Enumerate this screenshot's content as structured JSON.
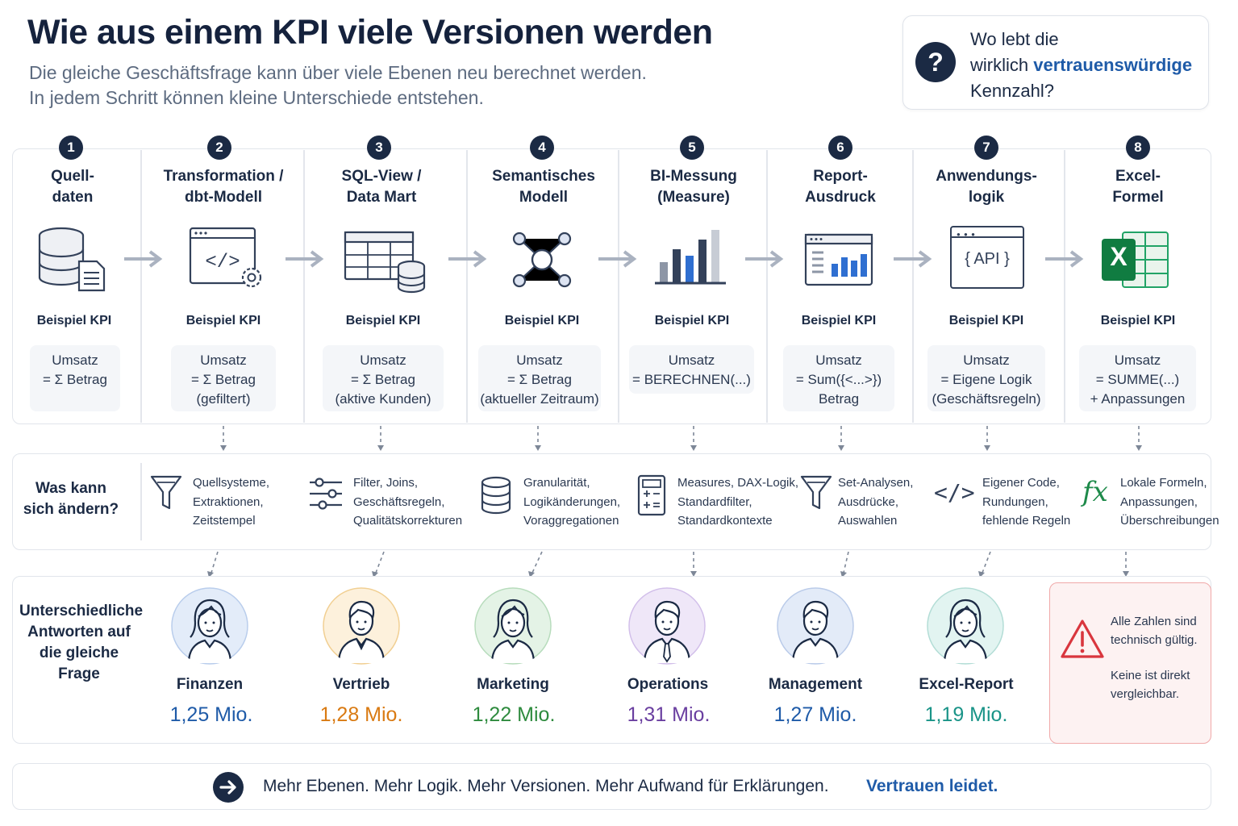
{
  "header": {
    "title": "Wie aus einem KPI viele Versionen werden",
    "subtitle_lines": [
      "Die gleiche Geschäftsfrage kann über viele Ebenen neu berechnet werden.",
      "In jedem Schritt können kleine Unterschiede entstehen."
    ]
  },
  "question_box": {
    "icon": "question-mark-icon",
    "symbol": "?",
    "line1": "Wo lebt die",
    "line2_prefix": "wirklich ",
    "line2_highlight": "vertrauenswürdige",
    "line3": "Kennzahl?"
  },
  "pipeline": {
    "kpi_label": "Beispiel KPI",
    "steps": [
      {
        "number": "1",
        "title": [
          "Quell-",
          "daten"
        ],
        "icon": "database-document-icon",
        "formula": [
          "Umsatz",
          "= Σ Betrag"
        ]
      },
      {
        "number": "2",
        "title": [
          "Transformation /",
          "dbt-Modell"
        ],
        "icon": "code-window-gear-icon",
        "formula": [
          "Umsatz",
          "= Σ Betrag",
          "(gefiltert)"
        ]
      },
      {
        "number": "3",
        "title": [
          "SQL-View /",
          "Data Mart"
        ],
        "icon": "table-database-icon",
        "formula": [
          "Umsatz",
          "= Σ Betrag",
          "(aktive Kunden)"
        ]
      },
      {
        "number": "4",
        "title": [
          "Semantisches",
          "Modell"
        ],
        "icon": "network-nodes-icon",
        "formula": [
          "Umsatz",
          "= Σ Betrag",
          "(aktueller Zeitraum)"
        ]
      },
      {
        "number": "5",
        "title": [
          "BI-Messung",
          "(Measure)"
        ],
        "icon": "bar-chart-icon",
        "formula": [
          "Umsatz",
          "= BERECHNEN(...)"
        ]
      },
      {
        "number": "6",
        "title": [
          "Report-",
          "Ausdruck"
        ],
        "icon": "report-window-icon",
        "formula": [
          "Umsatz",
          "= Sum({<...>})",
          "Betrag"
        ]
      },
      {
        "number": "7",
        "title": [
          "Anwendungs-",
          "logik"
        ],
        "icon": "api-window-icon",
        "icon_text": "{ API }",
        "formula": [
          "Umsatz",
          "= Eigene Logik",
          "(Geschäftsregeln)"
        ]
      },
      {
        "number": "8",
        "title": [
          "Excel-",
          "Formel"
        ],
        "icon": "excel-icon",
        "icon_text": "X",
        "formula": [
          "Umsatz",
          "= SUMME(...)",
          "+ Anpassungen"
        ]
      }
    ]
  },
  "changes": {
    "label": [
      "Was kann",
      "sich ändern?"
    ],
    "items": [
      {
        "icon": "funnel-icon",
        "lines": [
          "Quellsysteme,",
          "Extraktionen,",
          "Zeitstempel"
        ]
      },
      {
        "icon": "sliders-icon",
        "lines": [
          "Filter, Joins,",
          "Geschäftsregeln,",
          "Qualitätskorrekturen"
        ]
      },
      {
        "icon": "database-icon",
        "lines": [
          "Granularität,",
          "Logikänderungen,",
          "Voraggregationen"
        ]
      },
      {
        "icon": "calculator-icon",
        "lines": [
          "Measures, DAX-Logik,",
          "Standardfilter,",
          "Standardkontexte"
        ]
      },
      {
        "icon": "funnel-icon",
        "lines": [
          "Set-Analysen,",
          "Ausdrücke,",
          "Auswahlen"
        ]
      },
      {
        "icon": "code-brackets-icon",
        "symbol": "</>",
        "lines": [
          "Eigener Code,",
          "Rundungen,",
          "fehlende Regeln"
        ]
      },
      {
        "icon": "fx-icon",
        "symbol": "fx",
        "lines": [
          "Lokale Formeln,",
          "Anpassungen,",
          "Überschreibungen"
        ]
      }
    ]
  },
  "answers": {
    "label": [
      "Unterschiedliche",
      "Antworten auf",
      "die gleiche",
      "Frage"
    ],
    "people": [
      {
        "name": "Finanzen",
        "value": "1,25 Mio.",
        "color": "#1f5ba8",
        "icon": "woman-avatar-icon"
      },
      {
        "name": "Vertrieb",
        "value": "1,28 Mio.",
        "color": "#d97a12",
        "icon": "man-avatar-icon"
      },
      {
        "name": "Marketing",
        "value": "1,22 Mio.",
        "color": "#2e8b3e",
        "icon": "woman-avatar-icon"
      },
      {
        "name": "Operations",
        "value": "1,31 Mio.",
        "color": "#6a3fa0",
        "icon": "man-tie-avatar-icon"
      },
      {
        "name": "Management",
        "value": "1,27 Mio.",
        "color": "#1f5ba8",
        "icon": "man-avatar-icon"
      },
      {
        "name": "Excel-Report",
        "value": "1,19 Mio.",
        "color": "#1a9488",
        "icon": "woman-avatar-icon"
      }
    ],
    "warning": {
      "icon": "warning-triangle-icon",
      "line1": "Alle Zahlen sind",
      "line2": "technisch gültig.",
      "line3": "Keine ist direkt",
      "line4": "vergleichbar."
    }
  },
  "footer": {
    "icon": "arrow-right-circle-icon",
    "text": "Mehr Ebenen. Mehr Logik. Mehr Versionen. Mehr Aufwand für Erklärungen.",
    "highlight": "Vertrauen leidet."
  }
}
